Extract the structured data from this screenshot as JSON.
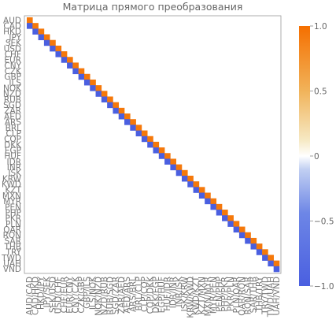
{
  "chart_data": {
    "type": "heatmap",
    "title": "Матрица прямого преобразования",
    "row_labels": [
      "AUD",
      "CAD",
      "HKD",
      "JPY",
      "SEK",
      "USD",
      "CHF",
      "EUR",
      "CNY",
      "CZK",
      "GBP",
      "ILS",
      "NOK",
      "NZD",
      "RUB",
      "SGD",
      "ZAR",
      "AED",
      "ARS",
      "BRL",
      "CLP",
      "COP",
      "DKK",
      "EGP",
      "HUF",
      "IDR",
      "INR",
      "ISK",
      "KRW",
      "KWD",
      "KZT",
      "MXN",
      "MYR",
      "PEN",
      "PHP",
      "PKR",
      "PLN",
      "QAR",
      "RON",
      "SAR",
      "THB",
      "TRY",
      "TWD",
      "UAH",
      "VND"
    ],
    "col_labels": [
      "AUD/CAD",
      "CAD/HKD",
      "HKD/JPY",
      "JPY/SEK",
      "SEK/USD",
      "USD/CHF",
      "CHF/EUR",
      "EUR/CNY",
      "CNY/CZK",
      "CZK/GBP",
      "GBP/ILS",
      "ILS/NOK",
      "NOK/NZD",
      "NZD/RUB",
      "RUB/SGD",
      "SGD/ZAR",
      "ZAR/AED",
      "AED/ARS",
      "ARS/BRL",
      "BRL/CLP",
      "CLP/COP",
      "COP/DKK",
      "DKK/EGP",
      "EGP/HUF",
      "HUF/IDR",
      "IDR/INR",
      "INR/ISK",
      "ISK/KRW",
      "KRW/KWD",
      "KWD/KZT",
      "KZT/MXN",
      "MXN/MYR",
      "MYR/PEN",
      "PEN/PHP",
      "PHP/PKR",
      "PKR/PLN",
      "PLN/QAR",
      "QAR/RON",
      "RON/SAR",
      "SAR/THB",
      "THB/TRY",
      "TRY/TWD",
      "TWD/UAH",
      "UAH/VND"
    ],
    "rule": "cell(i, i) = 1 (orange), cell(i+1, i) = -1 (blue), all other cells = 0 (white)",
    "diagonal_value": 1,
    "subdiagonal_value": -1,
    "off_value": 0,
    "colorbar": {
      "min": -1.0,
      "max": 1.0,
      "ticks": [
        {
          "value": 1.0,
          "label": "1.0"
        },
        {
          "value": 0.5,
          "label": "0.5"
        },
        {
          "value": 0.0,
          "label": "0"
        },
        {
          "value": -0.5,
          "label": "−0.5"
        },
        {
          "value": -1.0,
          "label": "−1.0"
        }
      ]
    },
    "colors": {
      "positive": "#f5780a",
      "negative": "#4a5fe0",
      "zero": "#ffffff",
      "frame": "#999999",
      "text": "#666666"
    },
    "grid": false
  }
}
